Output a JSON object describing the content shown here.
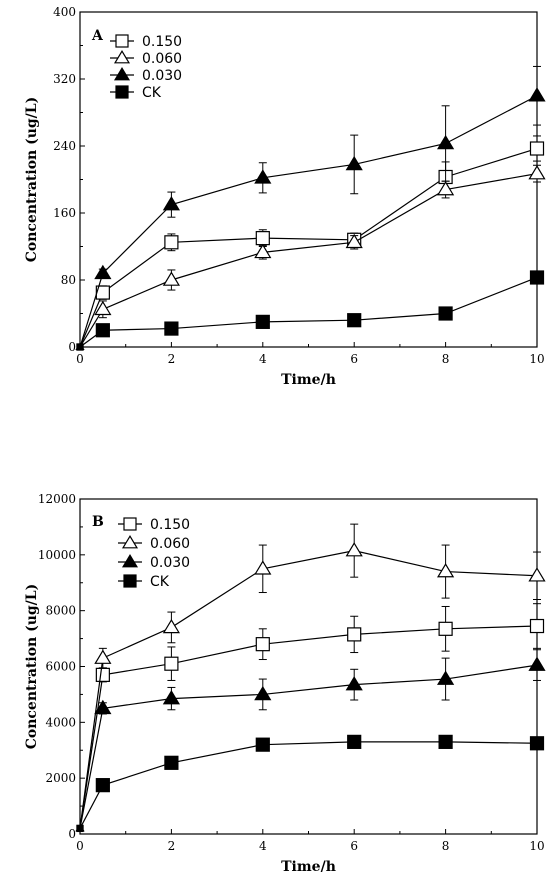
{
  "chart_data": [
    {
      "type": "line",
      "panel_label": "A",
      "xlabel": "Time/h",
      "ylabel": "Concentration (ug/L)",
      "xlim": [
        0,
        10
      ],
      "ylim": [
        0,
        400
      ],
      "xticks": [
        0,
        2,
        4,
        6,
        8,
        10
      ],
      "yticks": [
        0,
        80,
        160,
        240,
        320,
        400
      ],
      "x": [
        0,
        0.5,
        2,
        4,
        6,
        8,
        10
      ],
      "legend_position": "top-left",
      "series": [
        {
          "name": "0.150",
          "marker": "square-open",
          "values": [
            0,
            65,
            125,
            130,
            128,
            203,
            237
          ],
          "errors": [
            0,
            8,
            10,
            10,
            8,
            18,
            15
          ]
        },
        {
          "name": "0.060",
          "marker": "triangle-open",
          "values": [
            0,
            45,
            80,
            113,
            125,
            188,
            207
          ],
          "errors": [
            0,
            10,
            12,
            8,
            8,
            10,
            10
          ]
        },
        {
          "name": "0.030",
          "marker": "triangle-filled",
          "values": [
            0,
            88,
            170,
            202,
            218,
            243,
            300
          ],
          "errors": [
            0,
            5,
            15,
            18,
            35,
            45,
            35
          ]
        },
        {
          "name": "CK",
          "marker": "square-filled",
          "values": [
            0,
            20,
            22,
            30,
            32,
            40,
            83
          ],
          "errors": [
            0,
            3,
            3,
            3,
            3,
            3,
            5
          ]
        }
      ]
    },
    {
      "type": "line",
      "panel_label": "B",
      "xlabel": "Time/h",
      "ylabel": "Concentration (ug/L)",
      "xlim": [
        0,
        10
      ],
      "ylim": [
        0,
        12000
      ],
      "xticks": [
        0,
        2,
        4,
        6,
        8,
        10
      ],
      "yticks": [
        0,
        2000,
        4000,
        6000,
        8000,
        10000,
        12000
      ],
      "x": [
        0,
        0.5,
        2,
        4,
        6,
        8,
        10
      ],
      "legend_position": "top-left",
      "series": [
        {
          "name": "0.150",
          "marker": "square-open",
          "values": [
            200,
            5700,
            6100,
            6800,
            7150,
            7350,
            7450
          ],
          "errors": [
            0,
            250,
            600,
            550,
            650,
            800,
            800
          ]
        },
        {
          "name": "0.060",
          "marker": "triangle-open",
          "values": [
            200,
            6300,
            7400,
            9500,
            10150,
            9400,
            9250
          ],
          "errors": [
            0,
            350,
            550,
            850,
            950,
            950,
            850
          ]
        },
        {
          "name": "0.030",
          "marker": "triangle-filled",
          "values": [
            200,
            4500,
            4850,
            5000,
            5350,
            5550,
            6050
          ],
          "errors": [
            0,
            200,
            400,
            550,
            550,
            750,
            550
          ]
        },
        {
          "name": "CK",
          "marker": "square-filled",
          "values": [
            200,
            1750,
            2550,
            3200,
            3300,
            3300,
            3250
          ],
          "errors": [
            0,
            100,
            100,
            100,
            100,
            100,
            100
          ]
        }
      ]
    }
  ]
}
